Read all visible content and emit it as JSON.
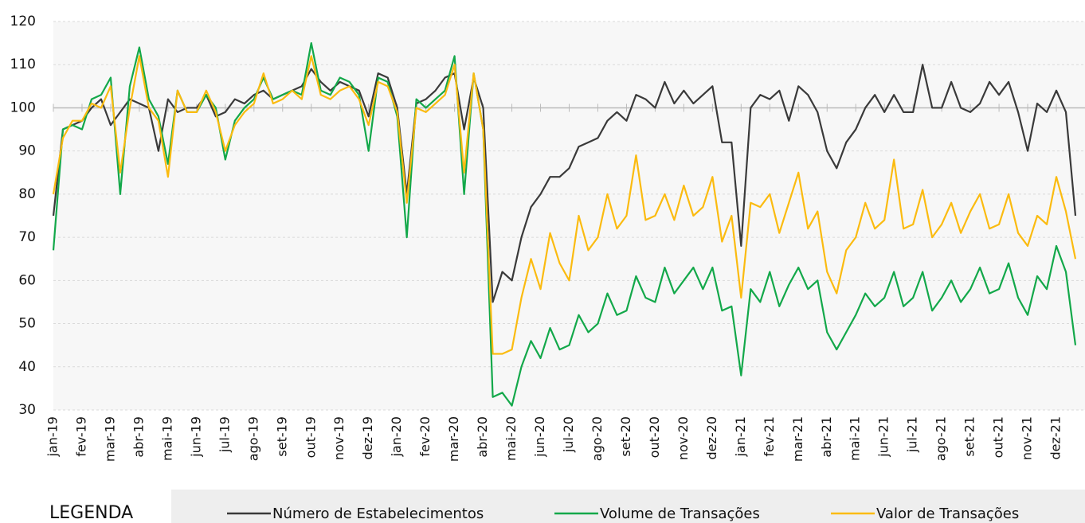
{
  "chart_data": {
    "type": "line",
    "legend_title": "LEGENDA",
    "categories": [
      "jan-19",
      null,
      null,
      "fev-19",
      null,
      null,
      "mar-19",
      null,
      null,
      "abr-19",
      null,
      null,
      "mai-19",
      null,
      null,
      "jun-19",
      null,
      null,
      "jul-19",
      null,
      null,
      "ago-19",
      null,
      null,
      "set-19",
      null,
      null,
      "out-19",
      null,
      null,
      "nov-19",
      null,
      null,
      "dez-19",
      null,
      null,
      "jan-20",
      null,
      null,
      "fev-20",
      null,
      null,
      "mar-20",
      null,
      null,
      "abr-20",
      null,
      null,
      "mai-20",
      null,
      null,
      "jun-20",
      null,
      null,
      "jul-20",
      null,
      null,
      "ago-20",
      null,
      null,
      "set-20",
      null,
      null,
      "out-20",
      null,
      null,
      "nov-20",
      null,
      null,
      "dez-20",
      null,
      null,
      "jan-21",
      null,
      null,
      "fev-21",
      null,
      null,
      "mar-21",
      null,
      null,
      "abr-21",
      null,
      null,
      "mai-21",
      null,
      null,
      "jun-21",
      null,
      null,
      "jul-21",
      null,
      null,
      "ago-21",
      null,
      null,
      "set-21",
      null,
      null,
      "out-21",
      null,
      null,
      "nov-21",
      null,
      null,
      "dez-21",
      null,
      null
    ],
    "series": [
      {
        "name": "Número de Estabelecimentos",
        "color": "#3a3a3a",
        "values": [
          75,
          95,
          96,
          97,
          100,
          102,
          96,
          99,
          102,
          101,
          100,
          90,
          102,
          99,
          100,
          100,
          103,
          98,
          99,
          102,
          101,
          103,
          104,
          102,
          103,
          104,
          105,
          109,
          106,
          104,
          106,
          105,
          104,
          98,
          108,
          107,
          100,
          80,
          101,
          102,
          104,
          107,
          108,
          95,
          107,
          100,
          55,
          62,
          60,
          70,
          77,
          80,
          84,
          84,
          86,
          91,
          92,
          93,
          97,
          99,
          97,
          103,
          102,
          100,
          106,
          101,
          104,
          101,
          103,
          105,
          92,
          92,
          68,
          100,
          103,
          102,
          104,
          97,
          105,
          103,
          99,
          90,
          86,
          92,
          95,
          100,
          103,
          99,
          103,
          99,
          99,
          110,
          100,
          100,
          106,
          100,
          99,
          101,
          106,
          103,
          106,
          99,
          90,
          101,
          99,
          104,
          99,
          75
        ]
      },
      {
        "name": "Volume de Transações",
        "color": "#13a84a",
        "values": [
          67,
          95,
          96,
          95,
          102,
          103,
          107,
          80,
          105,
          114,
          102,
          98,
          87,
          104,
          99,
          99,
          103,
          100,
          88,
          97,
          100,
          102,
          107,
          102,
          103,
          104,
          103,
          115,
          104,
          103,
          107,
          106,
          103,
          90,
          107,
          106,
          98,
          70,
          102,
          100,
          102,
          104,
          112,
          80,
          108,
          95,
          33,
          34,
          31,
          40,
          46,
          42,
          49,
          44,
          45,
          52,
          48,
          50,
          57,
          52,
          53,
          61,
          56,
          55,
          63,
          57,
          60,
          63,
          58,
          63,
          53,
          54,
          38,
          58,
          55,
          62,
          54,
          59,
          63,
          58,
          60,
          48,
          44,
          48,
          52,
          57,
          54,
          56,
          62,
          54,
          56,
          62,
          53,
          56,
          60,
          55,
          58,
          63,
          57,
          58,
          64,
          56,
          52,
          61,
          58,
          68,
          62,
          45
        ]
      },
      {
        "name": "Valor de Transações",
        "color": "#fbbb10",
        "values": [
          80,
          93,
          97,
          97,
          101,
          100,
          105,
          85,
          100,
          112,
          100,
          97,
          84,
          104,
          99,
          99,
          104,
          99,
          90,
          96,
          99,
          101,
          108,
          101,
          102,
          104,
          102,
          112,
          103,
          102,
          104,
          105,
          102,
          96,
          106,
          105,
          99,
          78,
          100,
          99,
          101,
          103,
          110,
          85,
          108,
          95,
          43,
          43,
          44,
          56,
          65,
          58,
          71,
          64,
          60,
          75,
          67,
          70,
          80,
          72,
          75,
          89,
          74,
          75,
          80,
          74,
          82,
          75,
          77,
          84,
          69,
          75,
          56,
          78,
          77,
          80,
          71,
          78,
          85,
          72,
          76,
          62,
          57,
          67,
          70,
          78,
          72,
          74,
          88,
          72,
          73,
          81,
          70,
          73,
          78,
          71,
          76,
          80,
          72,
          73,
          80,
          71,
          68,
          75,
          73,
          84,
          76,
          65
        ]
      }
    ],
    "ylim": [
      30,
      120
    ],
    "yticks": [
      30,
      40,
      50,
      60,
      70,
      80,
      90,
      100,
      110,
      120
    ],
    "grid": true,
    "reference_line": 100
  }
}
